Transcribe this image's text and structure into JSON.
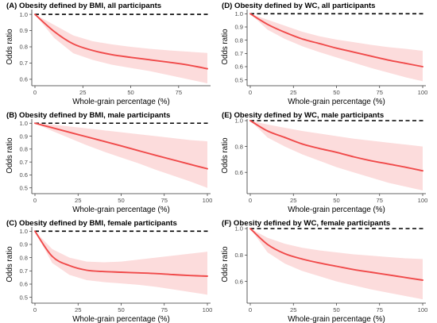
{
  "chart_data": [
    {
      "type": "line",
      "title": "(A) Obesity defined by BMI, all participants",
      "xlabel": "Whole-grain percentage (%)",
      "ylabel": "Odds ratio",
      "xlim": [
        0,
        90
      ],
      "ylim": [
        0.58,
        1.02
      ],
      "xticks": [
        "0",
        "25",
        "50",
        "75"
      ],
      "yticks": [
        "0.6",
        "0.7",
        "0.8",
        "0.9",
        "1.0"
      ],
      "reference_line": 1.0,
      "x": [
        0,
        10,
        20,
        30,
        40,
        50,
        60,
        70,
        80,
        90
      ],
      "y": [
        1.0,
        0.895,
        0.818,
        0.778,
        0.752,
        0.735,
        0.72,
        0.705,
        0.688,
        0.665
      ],
      "lower": [
        1.0,
        0.855,
        0.76,
        0.72,
        0.69,
        0.67,
        0.65,
        0.625,
        0.6,
        0.575
      ],
      "upper": [
        1.0,
        0.935,
        0.87,
        0.835,
        0.815,
        0.8,
        0.788,
        0.778,
        0.77,
        0.762
      ],
      "grid": false
    },
    {
      "type": "line",
      "title": "(D) Obesity defined by WC, all participants",
      "xlabel": "Whole-grain percentage (%)",
      "ylabel": "Odds ratio",
      "xlim": [
        0,
        100
      ],
      "ylim": [
        0.48,
        1.02
      ],
      "xticks": [
        "0",
        "25",
        "50",
        "75",
        "100"
      ],
      "yticks": [
        "0.5",
        "0.6",
        "0.7",
        "0.8",
        "0.9",
        "1.0"
      ],
      "reference_line": 1.0,
      "x": [
        0,
        10,
        20,
        30,
        40,
        50,
        60,
        70,
        80,
        90,
        100
      ],
      "y": [
        1.0,
        0.92,
        0.86,
        0.81,
        0.775,
        0.74,
        0.71,
        0.68,
        0.65,
        0.625,
        0.6
      ],
      "lower": [
        1.0,
        0.88,
        0.81,
        0.755,
        0.71,
        0.67,
        0.63,
        0.59,
        0.555,
        0.52,
        0.49
      ],
      "upper": [
        1.0,
        0.955,
        0.91,
        0.865,
        0.83,
        0.805,
        0.785,
        0.765,
        0.748,
        0.735,
        0.72
      ],
      "grid": false
    },
    {
      "type": "line",
      "title": "(B) Obesity defined by BMI, male participants",
      "xlabel": "Whole-grain percentage (%)",
      "ylabel": "Odds ratio",
      "xlim": [
        0,
        100
      ],
      "ylim": [
        0.48,
        1.02
      ],
      "xticks": [
        "0",
        "25",
        "50",
        "75",
        "100"
      ],
      "yticks": [
        "0.5",
        "0.6",
        "0.7",
        "0.8",
        "0.9",
        "1.0"
      ],
      "reference_line": 1.0,
      "x": [
        0,
        10,
        20,
        30,
        40,
        50,
        60,
        70,
        80,
        90,
        100
      ],
      "y": [
        1.0,
        0.965,
        0.93,
        0.895,
        0.86,
        0.825,
        0.788,
        0.752,
        0.717,
        0.682,
        0.648
      ],
      "lower": [
        1.0,
        0.94,
        0.885,
        0.83,
        0.78,
        0.735,
        0.69,
        0.64,
        0.595,
        0.55,
        0.5
      ],
      "upper": [
        1.0,
        0.99,
        0.975,
        0.96,
        0.945,
        0.93,
        0.915,
        0.9,
        0.885,
        0.87,
        0.86
      ],
      "grid": false
    },
    {
      "type": "line",
      "title": "(E) Obesity defined by WC, male participants",
      "xlabel": "Whole-grain percentage (%)",
      "ylabel": "Odds ratio",
      "xlim": [
        0,
        100
      ],
      "ylim": [
        0.46,
        1.0
      ],
      "xticks": [
        "0",
        "25",
        "50",
        "75",
        "100"
      ],
      "yticks": [
        "0.6",
        "0.8",
        "1.0"
      ],
      "reference_line": 1.0,
      "x": [
        0,
        10,
        20,
        30,
        40,
        50,
        60,
        70,
        80,
        90,
        100
      ],
      "y": [
        1.0,
        0.92,
        0.87,
        0.82,
        0.785,
        0.755,
        0.72,
        0.69,
        0.665,
        0.64,
        0.612
      ],
      "lower": [
        1.0,
        0.87,
        0.8,
        0.74,
        0.69,
        0.64,
        0.6,
        0.56,
        0.52,
        0.49,
        0.46
      ],
      "upper": [
        1.0,
        0.97,
        0.945,
        0.92,
        0.9,
        0.88,
        0.86,
        0.845,
        0.83,
        0.815,
        0.8
      ],
      "grid": false
    },
    {
      "type": "line",
      "title": "(C) Obesity defined by BMI, female participants",
      "xlabel": "Whole-grain percentage (%)",
      "ylabel": "Odds ratio",
      "xlim": [
        0,
        100
      ],
      "ylim": [
        0.48,
        1.02
      ],
      "xticks": [
        "0",
        "25",
        "50",
        "75",
        "100"
      ],
      "yticks": [
        "0.5",
        "0.6",
        "0.7",
        "0.8",
        "0.9",
        "1.0"
      ],
      "reference_line": 1.0,
      "x": [
        0,
        10,
        20,
        30,
        40,
        50,
        60,
        70,
        80,
        90,
        100
      ],
      "y": [
        1.0,
        0.81,
        0.74,
        0.705,
        0.695,
        0.69,
        0.685,
        0.68,
        0.672,
        0.665,
        0.66
      ],
      "lower": [
        1.0,
        0.76,
        0.67,
        0.63,
        0.615,
        0.605,
        0.595,
        0.58,
        0.56,
        0.54,
        0.52
      ],
      "upper": [
        1.0,
        0.865,
        0.8,
        0.77,
        0.765,
        0.77,
        0.785,
        0.8,
        0.815,
        0.83,
        0.845
      ],
      "grid": false
    },
    {
      "type": "line",
      "title": "(F) Obesity defined by WC, female participants",
      "xlabel": "Whole-grain percentage (%)",
      "ylabel": "Odds ratio",
      "xlim": [
        0,
        100
      ],
      "ylim": [
        0.46,
        1.0
      ],
      "xticks": [
        "0",
        "25",
        "50",
        "75",
        "100"
      ],
      "yticks": [
        "0.6",
        "0.8",
        "1.0"
      ],
      "reference_line": 1.0,
      "x": [
        0,
        10,
        20,
        30,
        40,
        50,
        60,
        70,
        80,
        90,
        100
      ],
      "y": [
        1.0,
        0.88,
        0.81,
        0.77,
        0.74,
        0.715,
        0.69,
        0.67,
        0.65,
        0.63,
        0.61
      ],
      "lower": [
        1.0,
        0.82,
        0.735,
        0.68,
        0.64,
        0.6,
        0.57,
        0.54,
        0.515,
        0.49,
        0.465
      ],
      "upper": [
        1.0,
        0.93,
        0.885,
        0.855,
        0.835,
        0.82,
        0.805,
        0.795,
        0.785,
        0.775,
        0.77
      ],
      "grid": false
    }
  ],
  "colors": {
    "line": "#f04a4a",
    "band": "#fcdcdc",
    "reference": "#000000",
    "axis": "#333333",
    "tick_text": "#4d4d4d"
  }
}
